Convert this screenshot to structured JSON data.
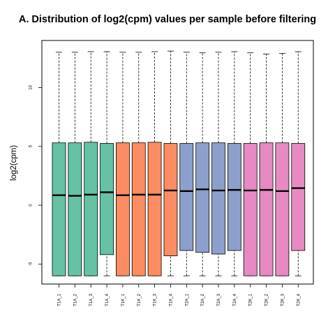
{
  "chart_data": {
    "type": "boxplot",
    "title": "A. Distribution of log2(cpm) values per sample before filtering",
    "xlabel": "",
    "ylabel": "log2(cpm)",
    "ylim": [
      -6.7,
      14.0
    ],
    "yticks": [
      -5,
      0,
      5,
      10
    ],
    "grid": false,
    "legend": "none",
    "categories": [
      "T1A_1",
      "T1A_2",
      "T1A_3",
      "T1A_4",
      "T1K_1",
      "T1K_2",
      "T1K_3",
      "T1K_4",
      "T2A_1",
      "T2A_2",
      "T2A_3",
      "T2A_4",
      "T2K_1",
      "T2K_2",
      "T2K_3",
      "T2K_4"
    ],
    "colors": [
      "#66c2a5",
      "#66c2a5",
      "#66c2a5",
      "#66c2a5",
      "#fc8d62",
      "#fc8d62",
      "#fc8d62",
      "#fc8d62",
      "#8da0cb",
      "#8da0cb",
      "#8da0cb",
      "#8da0cb",
      "#e78ac3",
      "#e78ac3",
      "#e78ac3",
      "#e78ac3"
    ],
    "boxes": [
      {
        "min": -6.0,
        "q1": -6.0,
        "median": 0.85,
        "q3": 5.3,
        "max": 13.0
      },
      {
        "min": -6.0,
        "q1": -6.0,
        "median": 0.8,
        "q3": 5.3,
        "max": 13.0
      },
      {
        "min": -6.0,
        "q1": -6.0,
        "median": 0.9,
        "q3": 5.35,
        "max": 13.05
      },
      {
        "min": -6.0,
        "q1": -4.2,
        "median": 1.1,
        "q3": 5.25,
        "max": 13.05
      },
      {
        "min": -6.0,
        "q1": -6.0,
        "median": 0.85,
        "q3": 5.3,
        "max": 13.0
      },
      {
        "min": -6.0,
        "q1": -6.0,
        "median": 0.9,
        "q3": 5.3,
        "max": 13.0
      },
      {
        "min": -6.0,
        "q1": -6.0,
        "median": 0.9,
        "q3": 5.35,
        "max": 13.05
      },
      {
        "min": -6.0,
        "q1": -4.3,
        "median": 1.25,
        "q3": 5.25,
        "max": 13.1
      },
      {
        "min": -6.0,
        "q1": -3.85,
        "median": 1.2,
        "q3": 5.25,
        "max": 13.0
      },
      {
        "min": -6.0,
        "q1": -4.0,
        "median": 1.35,
        "q3": 5.3,
        "max": 12.95
      },
      {
        "min": -6.0,
        "q1": -4.15,
        "median": 1.25,
        "q3": 5.3,
        "max": 13.0
      },
      {
        "min": -6.0,
        "q1": -3.85,
        "median": 1.3,
        "q3": 5.25,
        "max": 13.05
      },
      {
        "min": -6.0,
        "q1": -6.0,
        "median": 1.25,
        "q3": 5.25,
        "max": 12.95
      },
      {
        "min": -6.0,
        "q1": -6.0,
        "median": 1.3,
        "q3": 5.3,
        "max": 12.85
      },
      {
        "min": -6.0,
        "q1": -6.0,
        "median": 1.2,
        "q3": 5.3,
        "max": 12.9
      },
      {
        "min": -6.0,
        "q1": -3.85,
        "median": 1.45,
        "q3": 5.25,
        "max": 13.05
      }
    ]
  }
}
